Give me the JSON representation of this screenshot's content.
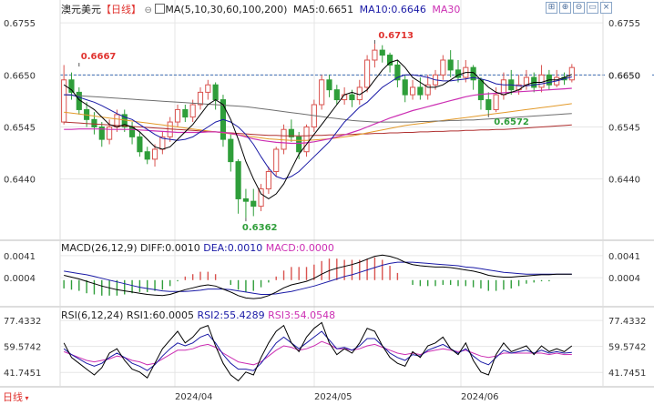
{
  "header": {
    "symbol": "澳元美元",
    "period": "【日线】",
    "period_icon": "gear-icon",
    "ma_params": "MA(5,10,30,60,100,200)",
    "ma5": "MA5:0.6651",
    "ma10": "MA10:0.6646",
    "ma30": "MA30"
  },
  "toolbar_icons": [
    "settings-icon",
    "zoom-in-icon",
    "zoom-out-icon",
    "layout-icon",
    "close-icon"
  ],
  "colors": {
    "up": "#d9534f",
    "down": "#2f9e3a",
    "ma5": "#000000",
    "ma10": "#1a1aa6",
    "ma30": "#cc2fb3",
    "ma60": "#6f6f6f",
    "ma100": "#e39a2a",
    "ma200": "#b03030",
    "axis_text": "#333333",
    "grid": "#e6e6e6",
    "dash_line": "#3f6fb5"
  },
  "macd_header": {
    "label": "MACD(26,12,9)",
    "diff": "DIFF:0.0010",
    "dea": "DEA:0.0010",
    "macd": "MACD:0.0000"
  },
  "rsi_header": {
    "label": "RSI(6,12,24)",
    "rsi1": "RSI1:60.0005",
    "rsi2": "RSI2:55.4289",
    "rsi3": "RSI3:54.0548"
  },
  "footer": {
    "period_button": "日线",
    "dates": [
      "2024/04",
      "2024/05",
      "2024/06"
    ]
  },
  "chart_data": [
    {
      "type": "candlestick",
      "yticks": [
        "0.6755",
        "0.6650",
        "0.6545",
        "0.6440"
      ],
      "ylim": [
        0.632,
        0.677
      ],
      "current_price_label": "0.6650",
      "annotations": [
        {
          "text": "0.6667",
          "value": 0.6667
        },
        {
          "text": "0.6713",
          "value": 0.6713
        },
        {
          "text": "0.6572",
          "value": 0.6572
        },
        {
          "text": "0.6362",
          "value": 0.6362
        }
      ],
      "candles": [
        [
          0.6555,
          0.664,
          0.667,
          0.655
        ],
        [
          0.664,
          0.6615,
          0.6655,
          0.66
        ],
        [
          0.6615,
          0.658,
          0.6625,
          0.657
        ],
        [
          0.658,
          0.656,
          0.6595,
          0.6545
        ],
        [
          0.656,
          0.6545,
          0.6575,
          0.653
        ],
        [
          0.6545,
          0.652,
          0.6555,
          0.6505
        ],
        [
          0.652,
          0.6545,
          0.656,
          0.651
        ],
        [
          0.6545,
          0.657,
          0.658,
          0.6535
        ],
        [
          0.657,
          0.6545,
          0.658,
          0.6535
        ],
        [
          0.6545,
          0.6525,
          0.6555,
          0.651
        ],
        [
          0.6525,
          0.6495,
          0.6535,
          0.6485
        ],
        [
          0.6495,
          0.648,
          0.6505,
          0.647
        ],
        [
          0.648,
          0.65,
          0.651,
          0.6465
        ],
        [
          0.65,
          0.6525,
          0.6535,
          0.649
        ],
        [
          0.6525,
          0.6555,
          0.6565,
          0.6515
        ],
        [
          0.6555,
          0.658,
          0.659,
          0.6545
        ],
        [
          0.658,
          0.6565,
          0.659,
          0.6555
        ],
        [
          0.6565,
          0.659,
          0.66,
          0.6555
        ],
        [
          0.659,
          0.6615,
          0.6625,
          0.658
        ],
        [
          0.6615,
          0.663,
          0.664,
          0.66
        ],
        [
          0.663,
          0.66,
          0.6635,
          0.658
        ],
        [
          0.66,
          0.652,
          0.661,
          0.6505
        ],
        [
          0.652,
          0.6475,
          0.653,
          0.6455
        ],
        [
          0.6475,
          0.64,
          0.648,
          0.637
        ],
        [
          0.64,
          0.6395,
          0.642,
          0.6362
        ],
        [
          0.6395,
          0.6385,
          0.642,
          0.6365
        ],
        [
          0.6385,
          0.642,
          0.643,
          0.6375
        ],
        [
          0.642,
          0.6455,
          0.6465,
          0.641
        ],
        [
          0.6455,
          0.65,
          0.6505,
          0.6445
        ],
        [
          0.65,
          0.654,
          0.655,
          0.649
        ],
        [
          0.654,
          0.6525,
          0.656,
          0.6515
        ],
        [
          0.6525,
          0.6495,
          0.6535,
          0.648
        ],
        [
          0.6495,
          0.6545,
          0.655,
          0.6485
        ],
        [
          0.6545,
          0.659,
          0.66,
          0.6535
        ],
        [
          0.659,
          0.664,
          0.665,
          0.658
        ],
        [
          0.664,
          0.662,
          0.665,
          0.6605
        ],
        [
          0.662,
          0.66,
          0.663,
          0.659
        ],
        [
          0.66,
          0.661,
          0.6625,
          0.659
        ],
        [
          0.661,
          0.66,
          0.662,
          0.6585
        ],
        [
          0.66,
          0.6625,
          0.664,
          0.659
        ],
        [
          0.6625,
          0.668,
          0.669,
          0.6615
        ],
        [
          0.668,
          0.67,
          0.6713,
          0.6665
        ],
        [
          0.67,
          0.669,
          0.671,
          0.6675
        ],
        [
          0.669,
          0.667,
          0.6695,
          0.6655
        ],
        [
          0.667,
          0.664,
          0.668,
          0.6625
        ],
        [
          0.664,
          0.661,
          0.665,
          0.6595
        ],
        [
          0.661,
          0.6625,
          0.664,
          0.66
        ],
        [
          0.6625,
          0.661,
          0.6645,
          0.66
        ],
        [
          0.661,
          0.663,
          0.665,
          0.66
        ],
        [
          0.663,
          0.665,
          0.666,
          0.662
        ],
        [
          0.665,
          0.668,
          0.669,
          0.664
        ],
        [
          0.668,
          0.666,
          0.67,
          0.6645
        ],
        [
          0.666,
          0.6645,
          0.668,
          0.6635
        ],
        [
          0.6645,
          0.6665,
          0.668,
          0.6635
        ],
        [
          0.6665,
          0.664,
          0.667,
          0.662
        ],
        [
          0.664,
          0.66,
          0.6645,
          0.658
        ],
        [
          0.66,
          0.658,
          0.6615,
          0.6572
        ],
        [
          0.658,
          0.661,
          0.6625,
          0.6575
        ],
        [
          0.661,
          0.664,
          0.6655,
          0.66
        ],
        [
          0.664,
          0.662,
          0.666,
          0.661
        ],
        [
          0.662,
          0.663,
          0.665,
          0.661
        ],
        [
          0.663,
          0.6645,
          0.666,
          0.662
        ],
        [
          0.6645,
          0.6625,
          0.6655,
          0.6615
        ],
        [
          0.6625,
          0.665,
          0.667,
          0.6615
        ],
        [
          0.665,
          0.663,
          0.666,
          0.662
        ],
        [
          0.663,
          0.6645,
          0.666,
          0.6625
        ],
        [
          0.6645,
          0.664,
          0.6655,
          0.663
        ],
        [
          0.664,
          0.6665,
          0.6672,
          0.6635
        ]
      ],
      "ma5": [
        0.663,
        0.662,
        0.66,
        0.659,
        0.658,
        0.6565,
        0.655,
        0.6545,
        0.655,
        0.6545,
        0.6535,
        0.652,
        0.6505,
        0.65,
        0.6505,
        0.652,
        0.6535,
        0.655,
        0.657,
        0.659,
        0.66,
        0.659,
        0.656,
        0.652,
        0.6475,
        0.644,
        0.641,
        0.64,
        0.641,
        0.643,
        0.646,
        0.649,
        0.651,
        0.653,
        0.655,
        0.657,
        0.659,
        0.661,
        0.6615,
        0.661,
        0.662,
        0.664,
        0.666,
        0.6675,
        0.668,
        0.6665,
        0.6645,
        0.6635,
        0.6625,
        0.6625,
        0.663,
        0.664,
        0.665,
        0.6655,
        0.6655,
        0.664,
        0.6625,
        0.6615,
        0.661,
        0.6615,
        0.662,
        0.663,
        0.6635,
        0.6635,
        0.664,
        0.664,
        0.6645,
        0.6651
      ],
      "ma10": [
        0.661,
        0.661,
        0.6605,
        0.66,
        0.6595,
        0.6588,
        0.658,
        0.6572,
        0.6565,
        0.656,
        0.655,
        0.654,
        0.653,
        0.6522,
        0.652,
        0.6518,
        0.652,
        0.6525,
        0.6535,
        0.6545,
        0.6555,
        0.656,
        0.6555,
        0.6545,
        0.653,
        0.651,
        0.6485,
        0.6462,
        0.6445,
        0.644,
        0.6445,
        0.6455,
        0.647,
        0.6485,
        0.65,
        0.6515,
        0.6535,
        0.6555,
        0.657,
        0.6585,
        0.6595,
        0.661,
        0.6625,
        0.6635,
        0.6645,
        0.665,
        0.665,
        0.6648,
        0.6645,
        0.664,
        0.6638,
        0.6638,
        0.664,
        0.6642,
        0.6645,
        0.6642,
        0.6638,
        0.6632,
        0.663,
        0.663,
        0.6628,
        0.6628,
        0.663,
        0.6632,
        0.6635,
        0.6638,
        0.6642,
        0.6646
      ],
      "ma30": [
        0.654,
        0.654,
        0.6541,
        0.6541,
        0.6541,
        0.6541,
        0.654,
        0.654,
        0.654,
        0.654,
        0.6539,
        0.6538,
        0.6537,
        0.6536,
        0.6535,
        0.6534,
        0.6534,
        0.6534,
        0.6534,
        0.6535,
        0.6535,
        0.6534,
        0.6532,
        0.6529,
        0.6525,
        0.6521,
        0.6518,
        0.6516,
        0.6514,
        0.6513,
        0.6512,
        0.6512,
        0.6513,
        0.6515,
        0.6518,
        0.6521,
        0.6525,
        0.6529,
        0.6534,
        0.6539,
        0.6545,
        0.6551,
        0.6557,
        0.6563,
        0.6568,
        0.6573,
        0.6578,
        0.6582,
        0.6586,
        0.659,
        0.6594,
        0.6598,
        0.6602,
        0.6606,
        0.6609,
        0.6611,
        0.6612,
        0.6613,
        0.6614,
        0.6615,
        0.6616,
        0.6617,
        0.6618,
        0.6619,
        0.662,
        0.6621,
        0.6622,
        0.6623
      ],
      "ma60": [
        0.661,
        0.6609,
        0.6608,
        0.6607,
        0.6606,
        0.6605,
        0.6604,
        0.6603,
        0.6602,
        0.6601,
        0.66,
        0.6599,
        0.6598,
        0.6597,
        0.6596,
        0.6595,
        0.6594,
        0.6593,
        0.6592,
        0.6591,
        0.659,
        0.6589,
        0.6588,
        0.6587,
        0.6586,
        0.6584,
        0.6582,
        0.658,
        0.6578,
        0.6576,
        0.6574,
        0.6572,
        0.657,
        0.6568,
        0.6566,
        0.6564,
        0.6562,
        0.656,
        0.6558,
        0.6557,
        0.6556,
        0.6555,
        0.6555,
        0.6555,
        0.6555,
        0.6555,
        0.6555,
        0.6556,
        0.6556,
        0.6557,
        0.6557,
        0.6558,
        0.6558,
        0.6559,
        0.6559,
        0.656,
        0.6561,
        0.6562,
        0.6563,
        0.6564,
        0.6565,
        0.6566,
        0.6567,
        0.6568,
        0.6569,
        0.657,
        0.6571,
        0.6572
      ],
      "ma100": [
        0.6575,
        0.6573,
        0.6571,
        0.6569,
        0.6567,
        0.6565,
        0.6563,
        0.6561,
        0.6559,
        0.6557,
        0.6555,
        0.6553,
        0.6551,
        0.6549,
        0.6547,
        0.6545,
        0.6543,
        0.6541,
        0.6539,
        0.6537,
        0.6535,
        0.6533,
        0.6531,
        0.6529,
        0.6527,
        0.6525,
        0.6523,
        0.6521,
        0.652,
        0.6519,
        0.6518,
        0.6518,
        0.6518,
        0.6519,
        0.652,
        0.6521,
        0.6523,
        0.6525,
        0.6527,
        0.653,
        0.6533,
        0.6536,
        0.6539,
        0.6542,
        0.6545,
        0.6548,
        0.655,
        0.6552,
        0.6554,
        0.6556,
        0.6558,
        0.656,
        0.6562,
        0.6564,
        0.6566,
        0.6568,
        0.657,
        0.6572,
        0.6574,
        0.6576,
        0.6578,
        0.658,
        0.6582,
        0.6584,
        0.6586,
        0.6588,
        0.659,
        0.6592
      ],
      "ma200": [
        0.6555,
        0.6554,
        0.6553,
        0.6552,
        0.6551,
        0.655,
        0.6549,
        0.6548,
        0.6547,
        0.6546,
        0.6545,
        0.6544,
        0.6543,
        0.6542,
        0.6541,
        0.654,
        0.6539,
        0.6538,
        0.6537,
        0.6536,
        0.6535,
        0.6534,
        0.6533,
        0.6532,
        0.6531,
        0.653,
        0.6529,
        0.6528,
        0.6528,
        0.6527,
        0.6527,
        0.6527,
        0.6527,
        0.6528,
        0.6528,
        0.6529,
        0.6529,
        0.653,
        0.653,
        0.6531,
        0.6531,
        0.6532,
        0.6532,
        0.6533,
        0.6533,
        0.6534,
        0.6534,
        0.6535,
        0.6535,
        0.6536,
        0.6536,
        0.6537,
        0.6537,
        0.6538,
        0.6538,
        0.6539,
        0.6539,
        0.654,
        0.654,
        0.6541,
        0.6542,
        0.6543,
        0.6544,
        0.6545,
        0.6546,
        0.6547,
        0.6548,
        0.6549
      ]
    },
    {
      "type": "macd",
      "yticks": [
        "0.0041",
        "0.0004"
      ],
      "ylim": [
        -0.004,
        0.005
      ],
      "diff": [
        0.0008,
        0.0005,
        0.0002,
        -0.0002,
        -0.0006,
        -0.001,
        -0.0013,
        -0.0016,
        -0.0018,
        -0.002,
        -0.0022,
        -0.0024,
        -0.0025,
        -0.0026,
        -0.0024,
        -0.002,
        -0.0016,
        -0.0013,
        -0.001,
        -0.0008,
        -0.001,
        -0.0015,
        -0.002,
        -0.0026,
        -0.003,
        -0.0031,
        -0.003,
        -0.0026,
        -0.002,
        -0.0013,
        -0.0008,
        -0.0005,
        -0.0002,
        0.0003,
        0.001,
        0.0016,
        0.002,
        0.0023,
        0.0026,
        0.003,
        0.0035,
        0.004,
        0.0042,
        0.004,
        0.0036,
        0.003,
        0.0026,
        0.0024,
        0.0023,
        0.0022,
        0.0022,
        0.0021,
        0.0019,
        0.0017,
        0.0015,
        0.0012,
        0.0008,
        0.0006,
        0.0005,
        0.0005,
        0.0006,
        0.0007,
        0.0008,
        0.0009,
        0.0009,
        0.001,
        0.001,
        0.001
      ],
      "dea": [
        0.0015,
        0.0013,
        0.0011,
        0.0009,
        0.0006,
        0.0003,
        0.0,
        -0.0003,
        -0.0006,
        -0.0009,
        -0.0012,
        -0.0014,
        -0.0016,
        -0.0018,
        -0.0019,
        -0.0019,
        -0.0019,
        -0.0018,
        -0.0017,
        -0.0015,
        -0.0015,
        -0.0015,
        -0.0016,
        -0.0018,
        -0.002,
        -0.0022,
        -0.0024,
        -0.0024,
        -0.0023,
        -0.0021,
        -0.0019,
        -0.0016,
        -0.0013,
        -0.001,
        -0.0006,
        -0.0002,
        0.0002,
        0.0006,
        0.0009,
        0.0013,
        0.0017,
        0.0021,
        0.0025,
        0.0028,
        0.003,
        0.003,
        0.003,
        0.0029,
        0.0028,
        0.0027,
        0.0026,
        0.0025,
        0.0024,
        0.0022,
        0.0021,
        0.0019,
        0.0017,
        0.0015,
        0.0013,
        0.0012,
        0.0011,
        0.001,
        0.001,
        0.001,
        0.001,
        0.001,
        0.001,
        0.001
      ]
    },
    {
      "type": "rsi",
      "yticks": [
        "77.4332",
        "59.5742",
        "41.7451"
      ],
      "ylim": [
        35,
        80
      ],
      "rsi1": [
        62,
        52,
        48,
        44,
        40,
        45,
        55,
        58,
        50,
        44,
        42,
        38,
        48,
        58,
        64,
        70,
        62,
        66,
        72,
        74,
        60,
        48,
        40,
        36,
        42,
        40,
        52,
        62,
        70,
        74,
        62,
        56,
        66,
        72,
        76,
        62,
        54,
        58,
        55,
        62,
        72,
        70,
        60,
        52,
        48,
        46,
        56,
        52,
        60,
        62,
        66,
        58,
        54,
        62,
        50,
        42,
        40,
        54,
        62,
        56,
        58,
        60,
        54,
        60,
        56,
        58,
        56,
        60
      ],
      "rsi2": [
        58,
        54,
        51,
        48,
        46,
        48,
        52,
        55,
        52,
        48,
        46,
        43,
        47,
        53,
        58,
        62,
        60,
        62,
        66,
        68,
        62,
        54,
        48,
        44,
        44,
        43,
        48,
        55,
        62,
        66,
        62,
        58,
        62,
        66,
        70,
        64,
        58,
        59,
        57,
        60,
        65,
        65,
        60,
        55,
        52,
        50,
        54,
        53,
        57,
        59,
        61,
        58,
        55,
        58,
        53,
        49,
        47,
        52,
        57,
        55,
        56,
        57,
        55,
        57,
        55,
        56,
        55,
        55.43
      ],
      "rsi3": [
        56,
        54,
        52,
        50,
        49,
        50,
        51,
        53,
        52,
        50,
        49,
        47,
        48,
        51,
        54,
        57,
        57,
        58,
        60,
        61,
        59,
        55,
        52,
        49,
        48,
        47,
        49,
        53,
        57,
        60,
        59,
        57,
        58,
        60,
        63,
        61,
        58,
        58,
        57,
        58,
        60,
        61,
        59,
        57,
        55,
        54,
        55,
        54,
        56,
        57,
        58,
        57,
        56,
        57,
        55,
        53,
        52,
        53,
        55,
        55,
        55,
        55,
        55,
        55,
        54,
        55,
        54,
        54.05
      ]
    }
  ]
}
